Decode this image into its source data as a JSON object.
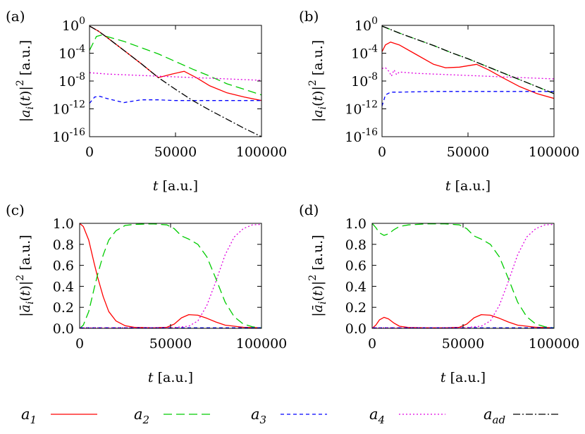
{
  "chart_data": [
    {
      "id": "a",
      "panel_label": "(a)",
      "type": "line",
      "yscale": "log",
      "xlim": [
        0,
        100000
      ],
      "ylim": [
        -16,
        0
      ],
      "xticks": [
        0,
        50000,
        100000
      ],
      "xtick_labels": [
        "0",
        "50000",
        "100000"
      ],
      "yticks": [
        0,
        -4,
        -8,
        -12,
        -16
      ],
      "ytick_labels": [
        "10^0",
        "10^-4",
        "10^-8",
        "10^-12",
        "10^-16"
      ],
      "xlabel": "t [a.u.]",
      "ylabel": "|a_i(t)|^2 [a.u.]",
      "series": [
        {
          "name": "a1",
          "x": [
            0,
            5000,
            10000,
            20000,
            30000,
            40000,
            48000,
            55000,
            62000,
            70000,
            80000,
            90000,
            100000
          ],
          "y": [
            -0.1,
            -0.8,
            -1.7,
            -3.6,
            -5.5,
            -7.5,
            -7.0,
            -6.6,
            -7.5,
            -8.7,
            -9.7,
            -10.3,
            -10.8
          ]
        },
        {
          "name": "a2",
          "x": [
            0,
            4000,
            7000,
            10000,
            20000,
            30000,
            40000,
            50000,
            60000,
            70000,
            80000,
            90000,
            100000
          ],
          "y": [
            -3.6,
            -1.6,
            -1.4,
            -1.6,
            -2.3,
            -3.2,
            -4.1,
            -5.2,
            -6.3,
            -7.3,
            -8.4,
            -9.2,
            -10.0
          ]
        },
        {
          "name": "a3",
          "x": [
            0,
            3000,
            6000,
            10000,
            15000,
            20000,
            25000,
            30000,
            40000,
            50000,
            60000,
            70000,
            80000,
            90000,
            100000
          ],
          "y": [
            -11.2,
            -10.3,
            -10.2,
            -10.5,
            -10.8,
            -11.1,
            -10.9,
            -10.7,
            -10.7,
            -10.8,
            -10.8,
            -10.8,
            -10.8,
            -10.8,
            -10.8
          ]
        },
        {
          "name": "a4",
          "x": [
            0,
            5000,
            10000,
            20000,
            30000,
            40000,
            50000,
            60000,
            70000,
            80000,
            90000,
            100000
          ],
          "y": [
            -6.8,
            -6.9,
            -7.0,
            -7.1,
            -7.2,
            -7.3,
            -7.4,
            -7.5,
            -7.6,
            -7.7,
            -7.8,
            -7.9
          ]
        },
        {
          "name": "aad",
          "x": [
            0,
            5000,
            10000,
            20000,
            30000,
            40000,
            50000,
            60000,
            70000,
            80000,
            90000,
            100000
          ],
          "y": [
            -0.1,
            -0.8,
            -1.7,
            -3.6,
            -5.5,
            -7.5,
            -9.2,
            -10.8,
            -12.2,
            -13.5,
            -14.8,
            -16.0
          ]
        }
      ]
    },
    {
      "id": "b",
      "panel_label": "(b)",
      "type": "line",
      "yscale": "log",
      "xlim": [
        0,
        100000
      ],
      "ylim": [
        -16,
        0
      ],
      "xticks": [
        0,
        50000,
        100000
      ],
      "xtick_labels": [
        "0",
        "50000",
        "100000"
      ],
      "yticks": [
        0,
        -4,
        -8,
        -12,
        -16
      ],
      "ytick_labels": [
        "10^0",
        "10^-4",
        "10^-8",
        "10^-12",
        "10^-16"
      ],
      "xlabel": "t [a.u.]",
      "ylabel": "|a_i(t)|^2 [a.u.]",
      "series": [
        {
          "name": "a1",
          "x": [
            0,
            2000,
            5000,
            10000,
            20000,
            30000,
            37000,
            45000,
            55000,
            62000,
            70000,
            80000,
            90000,
            100000
          ],
          "y": [
            -3.8,
            -2.8,
            -2.4,
            -2.8,
            -4.2,
            -5.6,
            -6.1,
            -6.0,
            -5.6,
            -6.4,
            -7.5,
            -8.8,
            -9.8,
            -10.5
          ]
        },
        {
          "name": "a2",
          "x": [
            0,
            10000,
            20000,
            30000,
            40000,
            50000,
            60000,
            70000,
            80000,
            90000,
            100000
          ],
          "y": [
            -0.1,
            -1.1,
            -2.0,
            -2.9,
            -3.9,
            -4.8,
            -5.8,
            -6.8,
            -7.8,
            -8.8,
            -9.8
          ]
        },
        {
          "name": "a3",
          "x": [
            0,
            2000,
            5000,
            10000,
            20000,
            30000,
            40000,
            50000,
            60000,
            70000,
            80000,
            90000,
            100000
          ],
          "y": [
            -11.6,
            -10.0,
            -9.6,
            -9.6,
            -9.55,
            -9.5,
            -9.5,
            -9.5,
            -9.5,
            -9.5,
            -9.5,
            -9.5,
            -9.5
          ]
        },
        {
          "name": "a4",
          "x": [
            0,
            2000,
            4000,
            5500,
            7000,
            8500,
            10000,
            20000,
            30000,
            40000,
            50000,
            60000,
            70000,
            80000,
            90000,
            100000
          ],
          "y": [
            -6.2,
            -6.1,
            -6.6,
            -7.3,
            -6.4,
            -7.1,
            -6.7,
            -6.9,
            -7.0,
            -7.1,
            -7.2,
            -7.3,
            -7.4,
            -7.5,
            -7.6,
            -7.7
          ]
        },
        {
          "name": "aad",
          "x": [
            0,
            10000,
            20000,
            30000,
            40000,
            50000,
            60000,
            70000,
            80000,
            90000,
            100000
          ],
          "y": [
            -0.1,
            -1.1,
            -2.0,
            -2.9,
            -3.9,
            -4.8,
            -5.8,
            -6.8,
            -7.8,
            -8.8,
            -9.8
          ]
        }
      ]
    },
    {
      "id": "c",
      "panel_label": "(c)",
      "type": "line",
      "yscale": "linear",
      "xlim": [
        0,
        100000
      ],
      "ylim": [
        0,
        1
      ],
      "xticks": [
        0,
        50000,
        100000
      ],
      "xtick_labels": [
        "0",
        "50000",
        "100000"
      ],
      "yticks": [
        0,
        0.2,
        0.4,
        0.6,
        0.8,
        1.0
      ],
      "ytick_labels": [
        "0.0",
        "0.2",
        "0.4",
        "0.6",
        "0.8",
        "1.0"
      ],
      "xlabel": "t [a.u.]",
      "ylabel": "|ā_i(t)|^2 [a.u.]",
      "series": [
        {
          "name": "a1",
          "x": [
            0,
            2000,
            5000,
            8000,
            10000,
            13000,
            16000,
            20000,
            25000,
            30000,
            40000,
            48000,
            52000,
            56000,
            60000,
            65000,
            70000,
            75000,
            80000,
            90000,
            100000
          ],
          "y": [
            1.0,
            0.97,
            0.84,
            0.62,
            0.48,
            0.3,
            0.16,
            0.07,
            0.025,
            0.01,
            0.005,
            0.01,
            0.04,
            0.1,
            0.13,
            0.125,
            0.095,
            0.06,
            0.03,
            0.01,
            0.005
          ]
        },
        {
          "name": "a2",
          "x": [
            0,
            2000,
            5000,
            8000,
            10000,
            13000,
            16000,
            20000,
            25000,
            30000,
            40000,
            48000,
            52000,
            56000,
            60000,
            65000,
            70000,
            75000,
            80000,
            85000,
            90000,
            95000,
            100000
          ],
          "y": [
            0.0,
            0.03,
            0.16,
            0.38,
            0.52,
            0.7,
            0.84,
            0.93,
            0.98,
            0.99,
            0.995,
            0.985,
            0.95,
            0.88,
            0.85,
            0.8,
            0.68,
            0.47,
            0.25,
            0.11,
            0.04,
            0.015,
            0.005
          ]
        },
        {
          "name": "a3",
          "x": [
            0,
            100000
          ],
          "y": [
            0.005,
            0.005
          ]
        },
        {
          "name": "a4",
          "x": [
            0,
            50000,
            60000,
            65000,
            70000,
            75000,
            80000,
            85000,
            90000,
            95000,
            100000
          ],
          "y": [
            0.005,
            0.005,
            0.02,
            0.07,
            0.22,
            0.45,
            0.7,
            0.87,
            0.95,
            0.985,
            0.99
          ]
        }
      ]
    },
    {
      "id": "d",
      "panel_label": "(d)",
      "type": "line",
      "yscale": "linear",
      "xlim": [
        0,
        100000
      ],
      "ylim": [
        0,
        1
      ],
      "xticks": [
        0,
        50000,
        100000
      ],
      "xtick_labels": [
        "0",
        "50000",
        "100000"
      ],
      "yticks": [
        0,
        0.2,
        0.4,
        0.6,
        0.8,
        1.0
      ],
      "ytick_labels": [
        "0.0",
        "0.2",
        "0.4",
        "0.6",
        "0.8",
        "1.0"
      ],
      "xlabel": "t [a.u.]",
      "ylabel": "|ā_i(t)|^2 [a.u.]",
      "series": [
        {
          "name": "a1",
          "x": [
            0,
            2000,
            4000,
            6500,
            9000,
            12000,
            15000,
            20000,
            30000,
            40000,
            48000,
            52000,
            56000,
            60000,
            65000,
            70000,
            75000,
            80000,
            90000,
            100000
          ],
          "y": [
            0.0,
            0.03,
            0.08,
            0.105,
            0.09,
            0.05,
            0.02,
            0.008,
            0.005,
            0.005,
            0.01,
            0.04,
            0.1,
            0.13,
            0.125,
            0.095,
            0.06,
            0.03,
            0.01,
            0.005
          ]
        },
        {
          "name": "a2",
          "x": [
            0,
            2000,
            4000,
            6500,
            9000,
            12000,
            15000,
            20000,
            25000,
            30000,
            40000,
            48000,
            52000,
            56000,
            60000,
            65000,
            70000,
            75000,
            80000,
            85000,
            90000,
            95000,
            100000
          ],
          "y": [
            1.0,
            0.96,
            0.91,
            0.885,
            0.9,
            0.94,
            0.97,
            0.985,
            0.99,
            0.995,
            0.995,
            0.985,
            0.95,
            0.88,
            0.85,
            0.8,
            0.68,
            0.47,
            0.25,
            0.11,
            0.04,
            0.015,
            0.005
          ]
        },
        {
          "name": "a3",
          "x": [
            0,
            100000
          ],
          "y": [
            0.005,
            0.005
          ]
        },
        {
          "name": "a4",
          "x": [
            0,
            50000,
            60000,
            65000,
            70000,
            75000,
            80000,
            85000,
            90000,
            95000,
            100000
          ],
          "y": [
            0.005,
            0.005,
            0.02,
            0.07,
            0.22,
            0.45,
            0.7,
            0.87,
            0.95,
            0.985,
            0.99
          ]
        }
      ]
    }
  ],
  "legend": [
    {
      "key": "a1",
      "base": "a",
      "sub": "1",
      "color": "#ff0000",
      "dash": ""
    },
    {
      "key": "a2",
      "base": "a",
      "sub": "2",
      "color": "#00cc00",
      "dash": "12,6"
    },
    {
      "key": "a3",
      "base": "a",
      "sub": "3",
      "color": "#0000ff",
      "dash": "5,4"
    },
    {
      "key": "a4",
      "base": "a",
      "sub": "4",
      "color": "#e000e0",
      "dash": "2,3"
    },
    {
      "key": "aad",
      "base": "a",
      "sub": "ad",
      "color": "#000000",
      "dash": "10,3,2,3"
    }
  ]
}
